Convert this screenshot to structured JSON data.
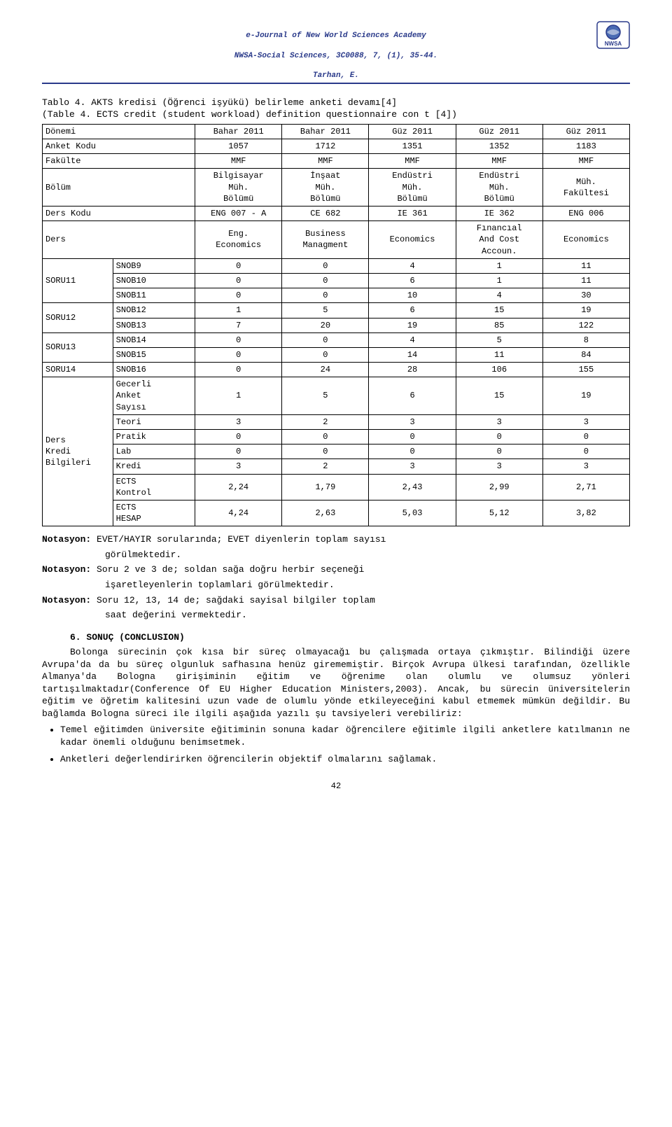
{
  "header": {
    "line1": "e-Journal of New World Sciences Academy",
    "line2": "NWSA-Social Sciences, 3C0088, 7, (1), 35-44.",
    "line3": "Tarhan, E.",
    "logo_label": "NWSA",
    "logo_fill": "#4a6bb3",
    "logo_stroke": "#2a3a8a",
    "rule_color": "#2a3a8a",
    "text_color": "#2a3a8a"
  },
  "caption": {
    "line1": "Tablo 4. AKTS kredisi (Öğrenci işyükü) belirleme anketi devamı[4]",
    "line2": "(Table 4. ECTS credit (student workload) definition questionnaire con t [4])"
  },
  "col_labels": {
    "donemi": "Dönemi",
    "anket_kodu": "Anket Kodu",
    "fakulte": "Fakülte",
    "bolum": "Bölüm",
    "ders_kodu": "Ders Kodu",
    "ders": "Ders"
  },
  "periods": [
    "Bahar 2011",
    "Bahar 2011",
    "Güz 2011",
    "Güz 2011",
    "Güz 2011"
  ],
  "anket_kodu": [
    "1057",
    "1712",
    "1351",
    "1352",
    "1183"
  ],
  "fakulte": [
    "MMF",
    "MMF",
    "MMF",
    "MMF",
    "MMF"
  ],
  "bolum": [
    "Bilgisayar\nMüh.\nBölümü",
    "İnşaat\nMüh.\nBölümü",
    "Endüstri\nMüh.\nBölümü",
    "Endüstri\nMüh.\nBölümü",
    "Müh.\nFakültesi"
  ],
  "ders_kodu": [
    "ENG 007 - A",
    "CE 682",
    "IE 361",
    "IE 362",
    "ENG 006"
  ],
  "ders_names": [
    "Eng.\nEconomics",
    "Business\nManagment",
    "Economics",
    "Fınancıal\nAnd Cost\nAccoun.",
    "Economics"
  ],
  "rows": [
    {
      "group": "SORU11",
      "sub": "SNOB9",
      "v": [
        "0",
        "0",
        "4",
        "1",
        "11"
      ]
    },
    {
      "group": "SORU11",
      "sub": "SNOB10",
      "v": [
        "0",
        "0",
        "6",
        "1",
        "11"
      ]
    },
    {
      "group": "SORU11",
      "sub": "SNOB11",
      "v": [
        "0",
        "0",
        "10",
        "4",
        "30"
      ]
    },
    {
      "group": "SORU12",
      "sub": "SNOB12",
      "v": [
        "1",
        "5",
        "6",
        "15",
        "19"
      ]
    },
    {
      "group": "SORU12",
      "sub": "SNOB13",
      "v": [
        "7",
        "20",
        "19",
        "85",
        "122"
      ]
    },
    {
      "group": "SORU13",
      "sub": "SNOB14",
      "v": [
        "0",
        "0",
        "4",
        "5",
        "8"
      ]
    },
    {
      "group": "SORU13",
      "sub": "SNOB15",
      "v": [
        "0",
        "0",
        "14",
        "11",
        "84"
      ]
    },
    {
      "group": "SORU14",
      "sub": "SNOB16",
      "v": [
        "0",
        "24",
        "28",
        "106",
        "155"
      ]
    },
    {
      "group": "Ders\nKredi\nBilgileri",
      "sub": "Gecerli\nAnket\nSayısı",
      "v": [
        "1",
        "5",
        "6",
        "15",
        "19"
      ]
    },
    {
      "group": "Ders\nKredi\nBilgileri",
      "sub": "Teori",
      "v": [
        "3",
        "2",
        "3",
        "3",
        "3"
      ]
    },
    {
      "group": "Ders\nKredi\nBilgileri",
      "sub": "Pratik",
      "v": [
        "0",
        "0",
        "0",
        "0",
        "0"
      ]
    },
    {
      "group": "Ders\nKredi\nBilgileri",
      "sub": "Lab",
      "v": [
        "0",
        "0",
        "0",
        "0",
        "0"
      ]
    },
    {
      "group": "Ders\nKredi\nBilgileri",
      "sub": "Kredi",
      "v": [
        "3",
        "2",
        "3",
        "3",
        "3"
      ]
    },
    {
      "group": "Ders\nKredi\nBilgileri",
      "sub": "ECTS\nKontrol",
      "v": [
        "2,24",
        "1,79",
        "2,43",
        "2,99",
        "2,71"
      ]
    },
    {
      "group": "Ders\nKredi\nBilgileri",
      "sub": "ECTS\nHESAP",
      "v": [
        "4,24",
        "2,63",
        "5,03",
        "5,12",
        "3,82"
      ]
    }
  ],
  "notes": [
    {
      "label": "Notasyon:",
      "rest": "EVET/HAYIR sorularında; EVET diyenlerin toplam sayısı",
      "cont": "görülmektedir."
    },
    {
      "label": "Notasyon:",
      "rest": "Soru 2 ve 3 de; soldan sağa doğru herbir seçeneği",
      "cont": "işaretleyenlerin toplamlari görülmektedir."
    },
    {
      "label": "Notasyon:",
      "rest": "Soru 12, 13, 14 de; sağdaki sayisal bilgiler toplam",
      "cont": "saat değerini vermektedir."
    }
  ],
  "section_heading": "6. SONUÇ (CONCLUSION)",
  "body_text": "Bolonga sürecinin çok kısa bir süreç olmayacağı bu çalışmada ortaya çıkmıştır. Bilindiği üzere Avrupa'da da  bu süreç olgunluk safhasına henüz girememiştir. Birçok Avrupa ülkesi tarafından, özellikle Almanya'da Bologna girişiminin eğitim ve öğrenime olan olumlu ve olumsuz yönleri tartışılmaktadır(Conference Of EU Higher Education Ministers,2003). Ancak, bu sürecin üniversitelerin eğitim ve öğretim kalitesini uzun vade de olumlu yönde etkileyeceğini kabul etmemek mümkün değildir. Bu bağlamda Bologna süreci ile ilgili aşağıda yazılı şu tavsiyeleri verebiliriz:",
  "bullets": [
    "Temel eğitimden üniversite eğitiminin sonuna kadar öğrencilere eğitimle ilgili anketlere katılmanın ne kadar önemli olduğunu benimsetmek.",
    "Anketleri değerlendirirken öğrencilerin objektif olmalarını sağlamak."
  ],
  "page_number": "42"
}
